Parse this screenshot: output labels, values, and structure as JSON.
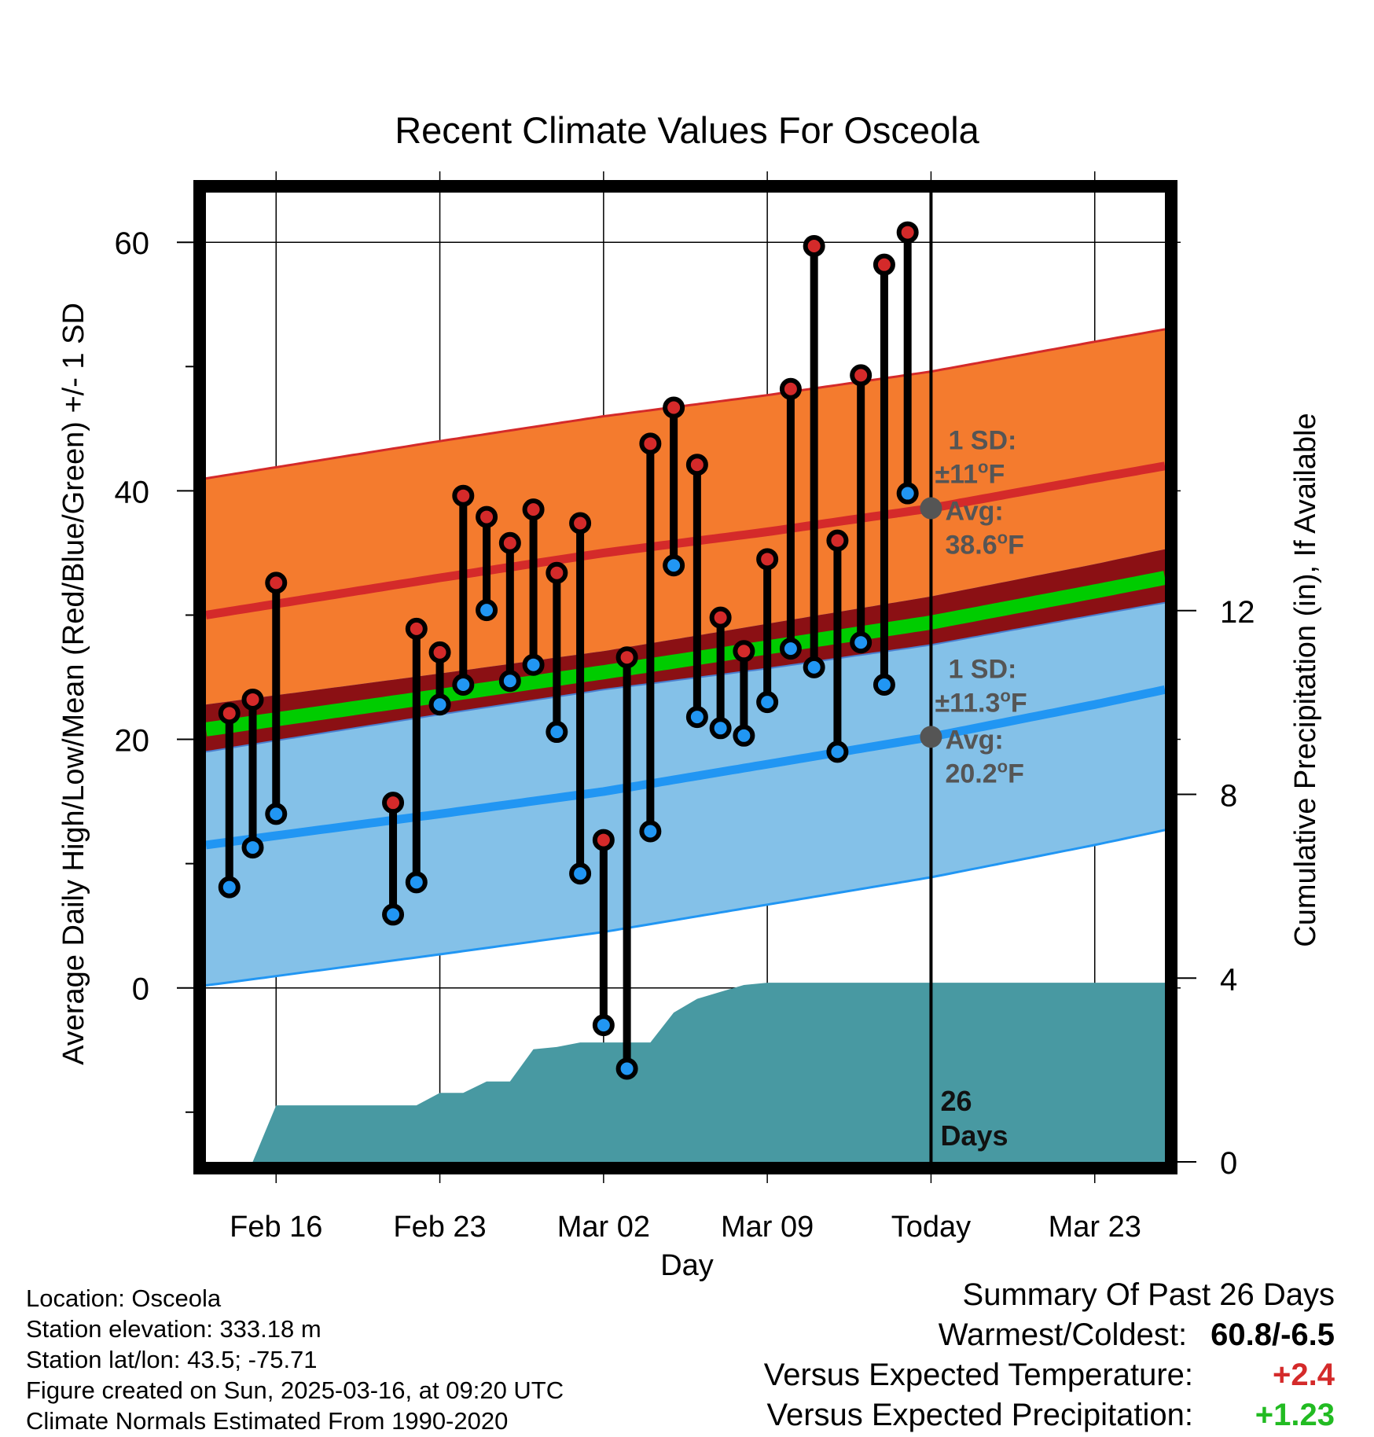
{
  "chart_data": {
    "type": "line",
    "title": "Recent Climate Values For Osceola",
    "xlabel": "Day",
    "ylabel": "Average Daily High/Low/Mean (Red/Blue/Green) +/- 1 SD",
    "y2label": "Cumulative Precipitation (in), If Available",
    "ylim": [
      -14,
      64
    ],
    "y2lim": [
      0,
      21.1
    ],
    "yticks": [
      0,
      20,
      40,
      60
    ],
    "y2ticks": [
      0,
      4,
      8,
      12
    ],
    "xlim": [
      "2025-02-13",
      "2025-03-26"
    ],
    "xticks": [
      {
        "date": "2025-02-16",
        "label": "Feb 16"
      },
      {
        "date": "2025-02-23",
        "label": "Feb 23"
      },
      {
        "date": "2025-03-02",
        "label": "Mar 02"
      },
      {
        "date": "2025-03-09",
        "label": "Mar 09"
      },
      {
        "date": "2025-03-16",
        "label": "Today"
      },
      {
        "date": "2025-03-23",
        "label": "Mar 23"
      }
    ],
    "grid": true,
    "today": {
      "date": "2025-03-16",
      "label_num": "26",
      "label_word": "Days"
    },
    "normals": {
      "dates": [
        "2025-02-13",
        "2025-02-23",
        "2025-03-02",
        "2025-03-09",
        "2025-03-16",
        "2025-03-23",
        "2025-03-26"
      ],
      "high_mean": [
        30.0,
        33.0,
        35.0,
        36.7,
        38.6,
        41.0,
        42.0
      ],
      "high_sd": 11,
      "low_mean": [
        11.5,
        14.0,
        15.8,
        18.0,
        20.2,
        22.8,
        24.0
      ],
      "low_sd": 11.3,
      "mean": [
        20.8,
        23.5,
        25.4,
        27.4,
        29.4,
        31.9,
        33.0
      ]
    },
    "high_annotation": {
      "sd_title": "1 SD:",
      "sd_value": "±11",
      "unit": "oF",
      "avg_title": "Avg:",
      "avg_value": "38.6",
      "y": 38.6
    },
    "low_annotation": {
      "sd_title": "1 SD:",
      "sd_value": "±11.3",
      "unit": "oF",
      "avg_title": "Avg:",
      "avg_value": "20.2",
      "y": 20.2
    },
    "series": [
      {
        "name": "High",
        "color": "#d42a2a",
        "dates": [
          "2025-02-14",
          "2025-02-15",
          "2025-02-16",
          "2025-02-21",
          "2025-02-22",
          "2025-02-23",
          "2025-02-24",
          "2025-02-25",
          "2025-02-26",
          "2025-02-27",
          "2025-02-28",
          "2025-03-01",
          "2025-03-02",
          "2025-03-03",
          "2025-03-04",
          "2025-03-05",
          "2025-03-06",
          "2025-03-07",
          "2025-03-08",
          "2025-03-09",
          "2025-03-10",
          "2025-03-11",
          "2025-03-12",
          "2025-03-13",
          "2025-03-14",
          "2025-03-15"
        ],
        "values": [
          22.1,
          23.2,
          32.6,
          14.9,
          28.9,
          27.0,
          39.6,
          37.9,
          35.8,
          38.5,
          33.4,
          37.4,
          11.9,
          26.6,
          43.8,
          46.7,
          42.1,
          29.8,
          27.1,
          34.5,
          48.2,
          59.7,
          36.0,
          49.3,
          58.2,
          60.8
        ]
      },
      {
        "name": "Low",
        "color": "#2196f3",
        "dates": [
          "2025-02-14",
          "2025-02-15",
          "2025-02-16",
          "2025-02-21",
          "2025-02-22",
          "2025-02-23",
          "2025-02-24",
          "2025-02-25",
          "2025-02-26",
          "2025-02-27",
          "2025-02-28",
          "2025-03-01",
          "2025-03-02",
          "2025-03-03",
          "2025-03-04",
          "2025-03-05",
          "2025-03-06",
          "2025-03-07",
          "2025-03-08",
          "2025-03-09",
          "2025-03-10",
          "2025-03-11",
          "2025-03-12",
          "2025-03-13",
          "2025-03-14",
          "2025-03-15"
        ],
        "values": [
          8.1,
          11.3,
          14.0,
          5.9,
          8.5,
          22.8,
          24.4,
          30.4,
          24.7,
          26.0,
          20.6,
          9.2,
          -3.0,
          -6.5,
          12.6,
          34.0,
          21.8,
          20.9,
          20.3,
          23.0,
          27.3,
          25.8,
          19.0,
          27.8,
          24.4,
          39.8
        ]
      }
    ],
    "precip": {
      "dates": [
        "2025-02-13",
        "2025-02-14",
        "2025-02-15",
        "2025-02-16",
        "2025-02-17",
        "2025-02-18",
        "2025-02-19",
        "2025-02-20",
        "2025-02-21",
        "2025-02-22",
        "2025-02-23",
        "2025-02-24",
        "2025-02-25",
        "2025-02-26",
        "2025-02-27",
        "2025-02-28",
        "2025-03-01",
        "2025-03-02",
        "2025-03-03",
        "2025-03-04",
        "2025-03-05",
        "2025-03-06",
        "2025-03-07",
        "2025-03-08",
        "2025-03-09",
        "2025-03-10",
        "2025-03-11",
        "2025-03-12",
        "2025-03-13",
        "2025-03-14",
        "2025-03-15",
        "2025-03-16",
        "2025-03-26"
      ],
      "values": [
        0,
        0,
        0,
        1.23,
        1.23,
        1.23,
        1.23,
        1.23,
        1.23,
        1.23,
        1.5,
        1.5,
        1.75,
        1.75,
        2.45,
        2.5,
        2.6,
        2.6,
        2.6,
        2.6,
        3.25,
        3.55,
        3.7,
        3.85,
        3.9,
        3.9,
        3.9,
        3.9,
        3.9,
        3.9,
        3.9,
        3.9,
        3.9
      ]
    }
  },
  "footer": {
    "location": "Location: Osceola",
    "elevation": "Station elevation: 333.18 m",
    "latlon": "Station lat/lon: 43.5; -75.71",
    "created": "Figure created on Sun, 2025-03-16, at 09:20 UTC",
    "normals": "Climate Normals Estimated From 1990-2020"
  },
  "summary": {
    "title": "Summary Of Past 26 Days",
    "warmest_label": "Warmest/Coldest:",
    "warmest_value": "60.8/-6.5",
    "temp_label": "Versus Expected Temperature:",
    "temp_value": "+2.4",
    "temp_color": "#d42a2a",
    "precip_label": "Versus Expected Precipitation:",
    "precip_value": "+1.23",
    "precip_color": "#22bb22"
  },
  "colors": {
    "high_band": "#f47b2e",
    "high_line": "#d42a2a",
    "low_band": "#84c1e8",
    "low_line": "#2196f3",
    "mean_band": "#8b1014",
    "mean_line": "#00cc00",
    "precip": "#4899a2",
    "annotation": "#555555"
  }
}
